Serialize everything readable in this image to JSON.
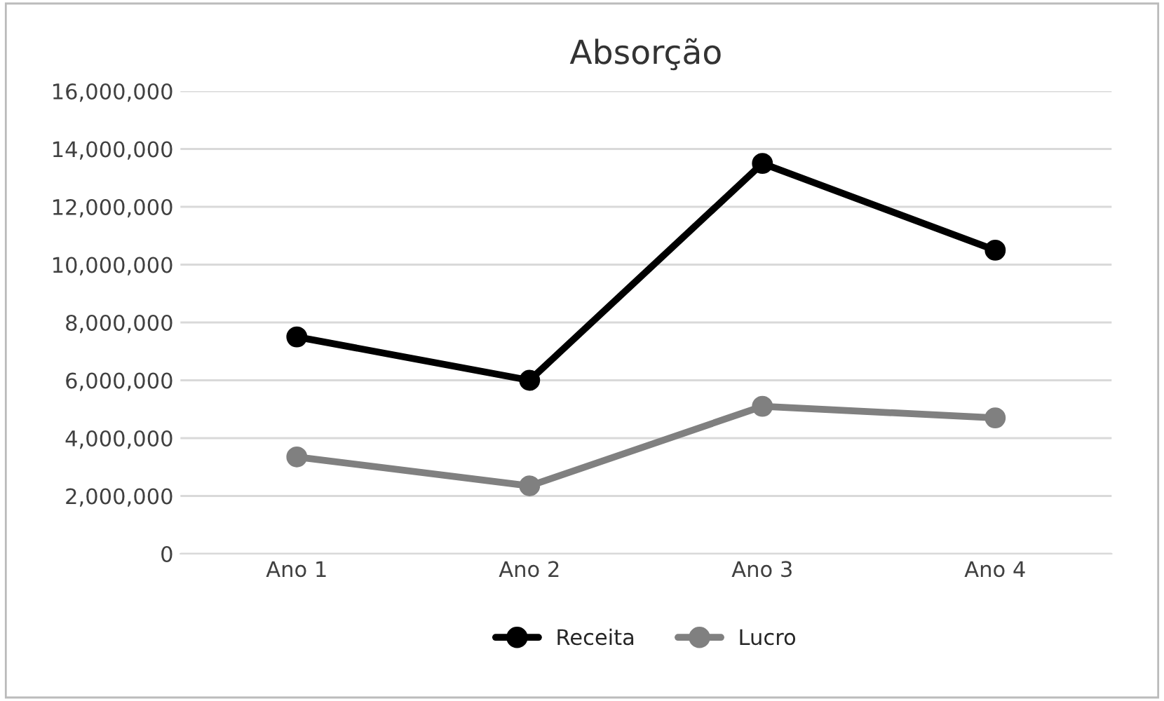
{
  "chart_data": {
    "type": "line",
    "title": "Absorção",
    "categories": [
      "Ano 1",
      "Ano 2",
      "Ano 3",
      "Ano 4"
    ],
    "series": [
      {
        "name": "Receita",
        "color": "#000000",
        "values": [
          7500000,
          6000000,
          13500000,
          10500000
        ]
      },
      {
        "name": "Lucro",
        "color": "#808080",
        "values": [
          3350000,
          2350000,
          5100000,
          4700000
        ]
      }
    ],
    "ylim": [
      0,
      16000000
    ],
    "yticks": [
      {
        "value": 0,
        "label": "0"
      },
      {
        "value": 2000000,
        "label": "2,000,000"
      },
      {
        "value": 4000000,
        "label": "4,000,000"
      },
      {
        "value": 6000000,
        "label": "6,000,000"
      },
      {
        "value": 8000000,
        "label": "8,000,000"
      },
      {
        "value": 10000000,
        "label": "10,000,000"
      },
      {
        "value": 12000000,
        "label": "12,000,000"
      },
      {
        "value": 14000000,
        "label": "14,000,000"
      },
      {
        "value": 16000000,
        "label": "16,000,000"
      }
    ],
    "grid": "y",
    "legend": "bottom",
    "marker": "circle",
    "line_style": "solid"
  }
}
